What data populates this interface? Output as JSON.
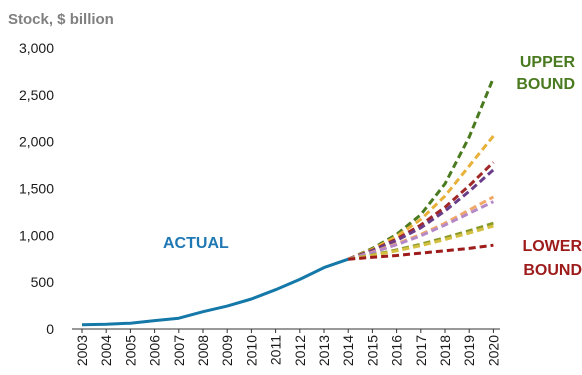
{
  "chart_data": {
    "type": "line",
    "title": "",
    "xlabel": "",
    "ylabel": "Stock, $ billion",
    "ylim": [
      0,
      3000
    ],
    "yticks": [
      0,
      500,
      1000,
      1500,
      2000,
      2500,
      3000
    ],
    "ytick_labels": [
      "0",
      "500",
      "1,000",
      "1,500",
      "2,000",
      "2,500",
      "3,000"
    ],
    "x": [
      2003,
      2004,
      2005,
      2006,
      2007,
      2008,
      2009,
      2010,
      2011,
      2012,
      2013,
      2014,
      2015,
      2016,
      2017,
      2018,
      2019,
      2020
    ],
    "xtick_labels": [
      "2003",
      "2004",
      "2005",
      "2006",
      "2007",
      "2008",
      "2009",
      "2010",
      "2011",
      "2012",
      "2013",
      "2014",
      "2015",
      "2016",
      "2017",
      "2018",
      "2019",
      "2020"
    ],
    "grid": false,
    "legend": "none",
    "annotations": [
      {
        "text": "ACTUAL",
        "color": "#1f78b4",
        "lines": [
          "ACTUAL"
        ]
      },
      {
        "text": "UPPER BOUND",
        "color": "#4a7a1f",
        "lines": [
          "UPPER",
          "BOUND"
        ]
      },
      {
        "text": "LOWER BOUND",
        "color": "#9e1b1b",
        "lines": [
          "LOWER",
          "BOUND"
        ]
      }
    ],
    "series": [
      {
        "style": "solid",
        "color": "#1478a8",
        "points": [
          [
            2003,
            45
          ],
          [
            2004,
            50
          ],
          [
            2005,
            62
          ],
          [
            2006,
            90
          ],
          [
            2007,
            115
          ],
          [
            2008,
            185
          ],
          [
            2009,
            245
          ],
          [
            2010,
            320
          ],
          [
            2011,
            420
          ],
          [
            2012,
            530
          ],
          [
            2013,
            655
          ],
          [
            2014,
            745
          ]
        ]
      },
      {
        "style": "dashed",
        "color": "#4a7a1f",
        "points": [
          [
            2014,
            745
          ],
          [
            2015,
            860
          ],
          [
            2016,
            1010
          ],
          [
            2017,
            1220
          ],
          [
            2018,
            1550
          ],
          [
            2019,
            2050
          ],
          [
            2020,
            2680
          ]
        ]
      },
      {
        "style": "dashed",
        "color": "#e8b23a",
        "points": [
          [
            2014,
            745
          ],
          [
            2015,
            850
          ],
          [
            2016,
            990
          ],
          [
            2017,
            1170
          ],
          [
            2018,
            1420
          ],
          [
            2019,
            1740
          ],
          [
            2020,
            2060
          ]
        ]
      },
      {
        "style": "dashed",
        "color": "#a02828",
        "points": [
          [
            2014,
            745
          ],
          [
            2015,
            840
          ],
          [
            2016,
            960
          ],
          [
            2017,
            1110
          ],
          [
            2018,
            1300
          ],
          [
            2019,
            1530
          ],
          [
            2020,
            1780
          ]
        ]
      },
      {
        "style": "dashed",
        "color": "#6a3d8a",
        "points": [
          [
            2014,
            745
          ],
          [
            2015,
            835
          ],
          [
            2016,
            945
          ],
          [
            2017,
            1080
          ],
          [
            2018,
            1260
          ],
          [
            2019,
            1470
          ],
          [
            2020,
            1700
          ]
        ]
      },
      {
        "style": "dashed",
        "color": "#f0a868",
        "points": [
          [
            2014,
            745
          ],
          [
            2015,
            820
          ],
          [
            2016,
            910
          ],
          [
            2017,
            1010
          ],
          [
            2018,
            1130
          ],
          [
            2019,
            1270
          ],
          [
            2020,
            1410
          ]
        ]
      },
      {
        "style": "dashed",
        "color": "#b589c8",
        "points": [
          [
            2014,
            745
          ],
          [
            2015,
            815
          ],
          [
            2016,
            900
          ],
          [
            2017,
            995
          ],
          [
            2018,
            1110
          ],
          [
            2019,
            1235
          ],
          [
            2020,
            1360
          ]
        ]
      },
      {
        "style": "dashed",
        "color": "#8a9a2a",
        "points": [
          [
            2014,
            745
          ],
          [
            2015,
            790
          ],
          [
            2016,
            845
          ],
          [
            2017,
            905
          ],
          [
            2018,
            975
          ],
          [
            2019,
            1050
          ],
          [
            2020,
            1130
          ]
        ]
      },
      {
        "style": "dashed",
        "color": "#d4c040",
        "points": [
          [
            2014,
            745
          ],
          [
            2015,
            785
          ],
          [
            2016,
            835
          ],
          [
            2017,
            890
          ],
          [
            2018,
            955
          ],
          [
            2019,
            1025
          ],
          [
            2020,
            1100
          ]
        ]
      },
      {
        "style": "dashed",
        "color": "#9e1b1b",
        "points": [
          [
            2014,
            745
          ],
          [
            2015,
            765
          ],
          [
            2016,
            785
          ],
          [
            2017,
            810
          ],
          [
            2018,
            835
          ],
          [
            2019,
            860
          ],
          [
            2020,
            895
          ]
        ]
      }
    ]
  }
}
